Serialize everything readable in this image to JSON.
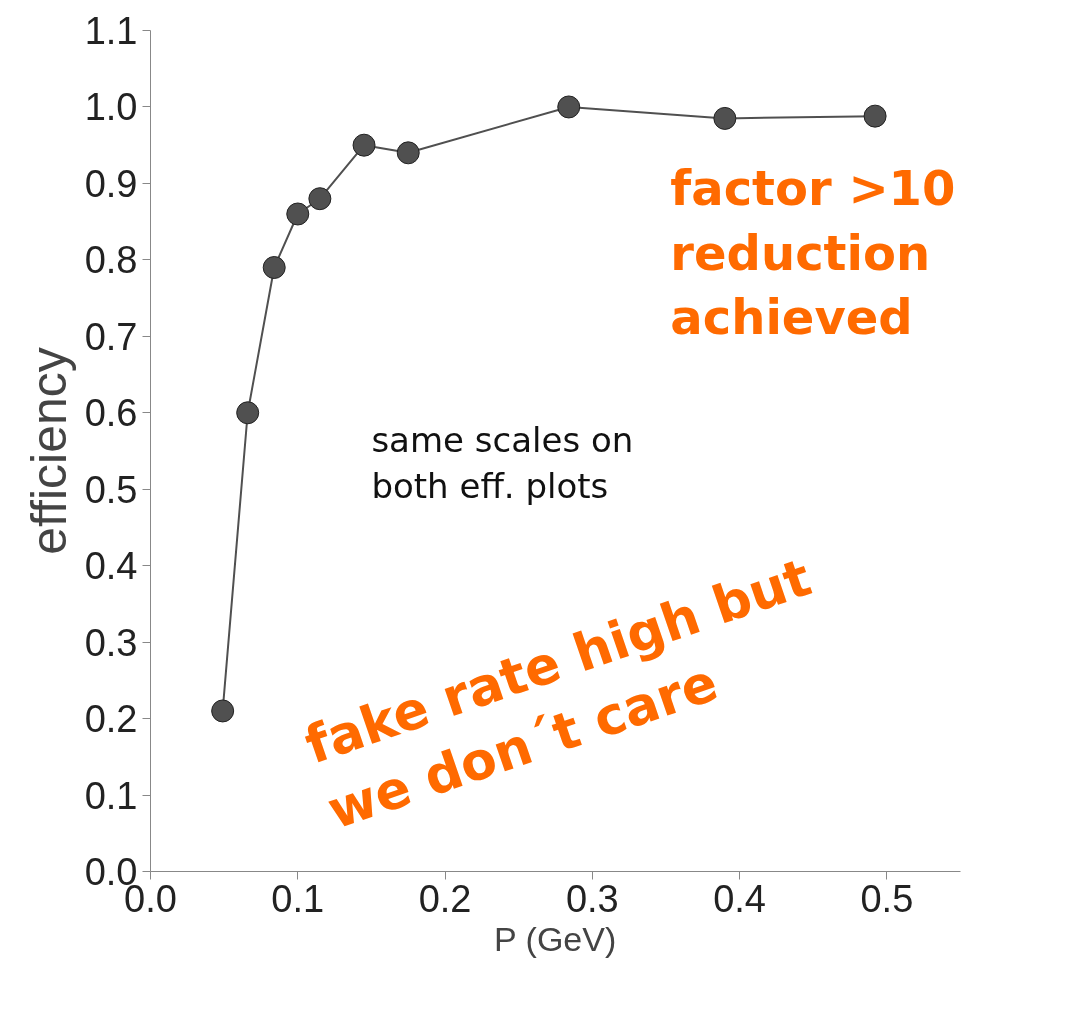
{
  "chart_data": {
    "type": "line",
    "xlabel": "P (GeV)",
    "ylabel": "efficiency",
    "x": [
      0.049,
      0.066,
      0.084,
      0.1,
      0.115,
      0.145,
      0.175,
      0.284,
      0.39,
      0.492
    ],
    "series": [
      {
        "color": "#505050",
        "values": [
          0.21,
          0.6,
          0.79,
          0.86,
          0.88,
          0.95,
          0.94,
          1.0,
          0.985,
          0.988
        ]
      }
    ],
    "xlim": [
      0,
      0.55
    ],
    "ylim": [
      0,
      1.1
    ],
    "xticks": [
      {
        "value": 0,
        "label": "0.0"
      },
      0.1,
      0.2,
      0.3,
      0.4,
      0.5
    ],
    "yticks": [
      {
        "value": 0,
        "label": "0.0"
      },
      0.1,
      0.2,
      0.3,
      0.4,
      0.5,
      0.6,
      0.7,
      0.8,
      0.9,
      {
        "value": 1,
        "label": "1.0"
      },
      1.1
    ],
    "marker": "circle",
    "line_style": "solid",
    "grid": false,
    "annotations": [
      "same scales on both eff. plots",
      "factor >10 reduction achieved",
      "fake rate high but we don´t care"
    ]
  }
}
